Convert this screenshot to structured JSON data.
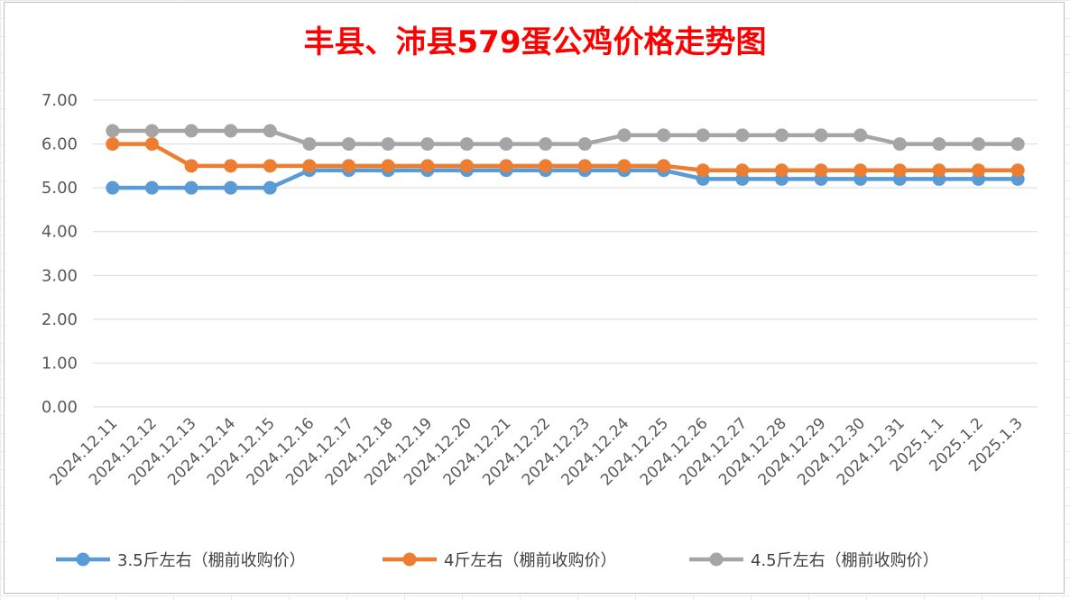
{
  "chart_data": {
    "type": "line",
    "title": "丰县、沛县579蛋公鸡价格走势图",
    "xlabel": "",
    "ylabel": "",
    "ylim": [
      0,
      7
    ],
    "yticks": [
      "0.00",
      "1.00",
      "2.00",
      "3.00",
      "4.00",
      "5.00",
      "6.00",
      "7.00"
    ],
    "grid": true,
    "legend_position": "bottom",
    "x": [
      "2024.12.11",
      "2024.12.12",
      "2024.12.13",
      "2024.12.14",
      "2024.12.15",
      "2024.12.16",
      "2024.12.17",
      "2024.12.18",
      "2024.12.19",
      "2024.12.20",
      "2024.12.21",
      "2024.12.22",
      "2024.12.23",
      "2024.12.24",
      "2024.12.25",
      "2024.12.26",
      "2024.12.27",
      "2024.12.28",
      "2024.12.29",
      "2024.12.30",
      "2024.12.31",
      "2025.1.1",
      "2025.1.2",
      "2025.1.3"
    ],
    "series": [
      {
        "name": "3.5斤左右（棚前收购价）",
        "color": "#5b9bd5",
        "values": [
          5.0,
          5.0,
          5.0,
          5.0,
          5.0,
          5.4,
          5.4,
          5.4,
          5.4,
          5.4,
          5.4,
          5.4,
          5.4,
          5.4,
          5.4,
          5.2,
          5.2,
          5.2,
          5.2,
          5.2,
          5.2,
          5.2,
          5.2,
          5.2
        ]
      },
      {
        "name": "4斤左右（棚前收购价）",
        "color": "#ed7d31",
        "values": [
          6.0,
          6.0,
          5.5,
          5.5,
          5.5,
          5.5,
          5.5,
          5.5,
          5.5,
          5.5,
          5.5,
          5.5,
          5.5,
          5.5,
          5.5,
          5.4,
          5.4,
          5.4,
          5.4,
          5.4,
          5.4,
          5.4,
          5.4,
          5.4
        ]
      },
      {
        "name": "4.5斤左右（棚前收购价）",
        "color": "#a5a5a5",
        "values": [
          6.3,
          6.3,
          6.3,
          6.3,
          6.3,
          6.0,
          6.0,
          6.0,
          6.0,
          6.0,
          6.0,
          6.0,
          6.0,
          6.2,
          6.2,
          6.2,
          6.2,
          6.2,
          6.2,
          6.2,
          6.0,
          6.0,
          6.0,
          6.0
        ]
      }
    ]
  }
}
